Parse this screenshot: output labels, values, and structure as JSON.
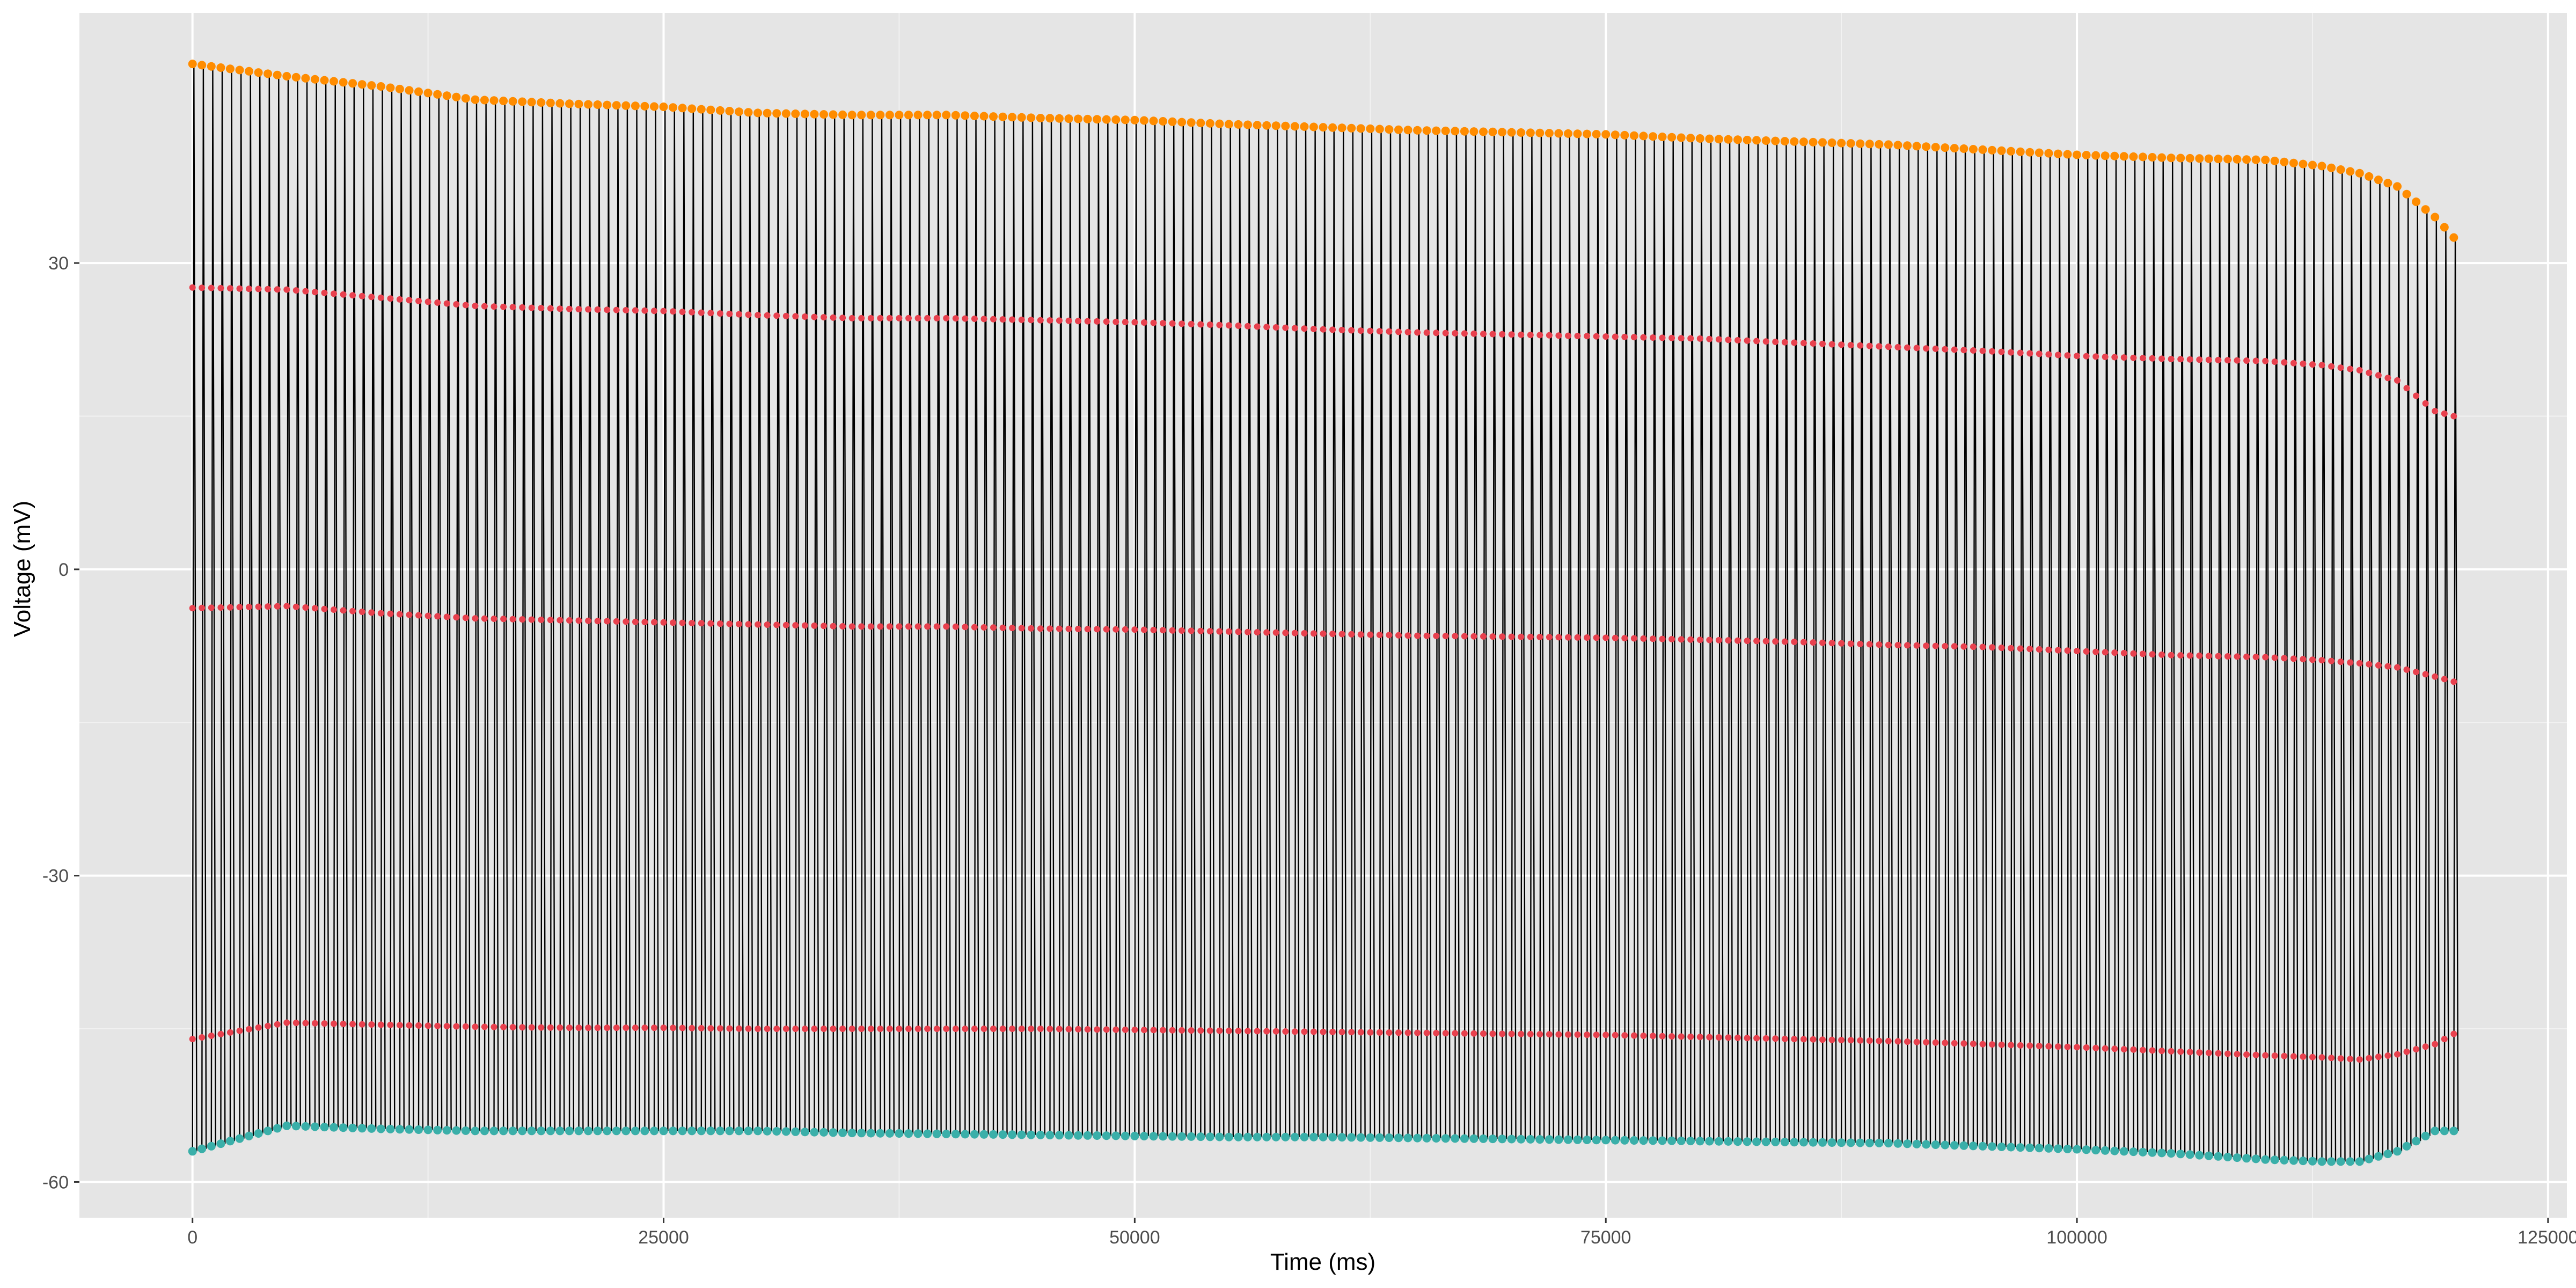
{
  "chart_data": {
    "type": "line",
    "title": "",
    "xlabel": "Time (ms)",
    "ylabel": "Voltage (mV)",
    "xlim": [
      -6000,
      126000
    ],
    "ylim": [
      -63.5,
      54.5
    ],
    "x_ticks": [
      0,
      25000,
      50000,
      75000,
      100000,
      125000
    ],
    "x_tick_labels": [
      "0",
      "25000",
      "50000",
      "75000",
      "100000",
      "125000"
    ],
    "y_ticks": [
      -60,
      -30,
      0,
      30
    ],
    "y_tick_labels": [
      "-60",
      "-30",
      "0",
      "30"
    ],
    "grid": true,
    "legend": "none",
    "trace": {
      "description": "dense spike train; each spike rises from trough to peak",
      "t_start": 0,
      "t_end": 120000,
      "spike_interval": 500,
      "color": "#000000"
    },
    "series": [
      {
        "role": "spike peaks",
        "color": "#FF8C00",
        "x": [
          0,
          5000,
          10000,
          15000,
          20000,
          25000,
          30000,
          35000,
          40000,
          45000,
          50000,
          55000,
          60000,
          65000,
          70000,
          75000,
          80000,
          85000,
          90000,
          95000,
          100000,
          105000,
          110000,
          113000,
          115000,
          117000,
          119000,
          120000
        ],
        "y": [
          49.5,
          48.3,
          47.3,
          46.0,
          45.6,
          45.3,
          44.7,
          44.5,
          44.5,
          44.2,
          44.0,
          43.6,
          43.3,
          43.0,
          42.8,
          42.6,
          42.2,
          41.9,
          41.6,
          41.1,
          40.6,
          40.3,
          40.1,
          39.5,
          38.8,
          37.5,
          34.5,
          32.5
        ]
      },
      {
        "role": "upper marker",
        "color": "#E8414E",
        "x": [
          0,
          5000,
          10000,
          15000,
          20000,
          25000,
          30000,
          35000,
          40000,
          45000,
          50000,
          55000,
          60000,
          65000,
          70000,
          75000,
          80000,
          85000,
          90000,
          95000,
          100000,
          105000,
          110000,
          113000,
          115000,
          117000,
          119000,
          120000
        ],
        "y": [
          27.6,
          27.4,
          26.6,
          25.8,
          25.5,
          25.3,
          24.9,
          24.6,
          24.6,
          24.4,
          24.2,
          23.9,
          23.5,
          23.2,
          23.0,
          22.8,
          22.6,
          22.2,
          21.8,
          21.4,
          20.9,
          20.6,
          20.4,
          20.0,
          19.5,
          18.5,
          15.5,
          15.0
        ]
      },
      {
        "role": "middle marker",
        "color": "#E8414E",
        "x": [
          0,
          5000,
          10000,
          15000,
          20000,
          25000,
          30000,
          35000,
          40000,
          45000,
          50000,
          55000,
          60000,
          65000,
          70000,
          75000,
          80000,
          85000,
          90000,
          95000,
          100000,
          105000,
          110000,
          113000,
          115000,
          117000,
          119000,
          120000
        ],
        "y": [
          -3.8,
          -3.6,
          -4.3,
          -4.8,
          -5.0,
          -5.2,
          -5.4,
          -5.6,
          -5.6,
          -5.8,
          -5.9,
          -6.1,
          -6.3,
          -6.5,
          -6.6,
          -6.7,
          -6.9,
          -7.1,
          -7.4,
          -7.6,
          -8.0,
          -8.4,
          -8.6,
          -8.9,
          -9.2,
          -9.6,
          -10.5,
          -11.0
        ]
      },
      {
        "role": "lower marker",
        "color": "#E8414E",
        "x": [
          0,
          5000,
          10000,
          15000,
          20000,
          25000,
          30000,
          35000,
          40000,
          45000,
          50000,
          55000,
          60000,
          65000,
          70000,
          75000,
          80000,
          85000,
          90000,
          95000,
          100000,
          105000,
          110000,
          113000,
          115000,
          117000,
          119000,
          120000
        ],
        "y": [
          -46.0,
          -44.4,
          -44.6,
          -44.8,
          -44.9,
          -44.9,
          -45.0,
          -45.0,
          -45.0,
          -45.0,
          -45.1,
          -45.2,
          -45.3,
          -45.4,
          -45.5,
          -45.6,
          -45.8,
          -46.0,
          -46.2,
          -46.5,
          -46.8,
          -47.2,
          -47.6,
          -47.8,
          -48.0,
          -47.5,
          -46.5,
          -45.5
        ]
      },
      {
        "role": "troughs",
        "color": "#3AAFA9",
        "x": [
          0,
          5000,
          10000,
          15000,
          20000,
          25000,
          30000,
          35000,
          40000,
          45000,
          50000,
          55000,
          60000,
          65000,
          70000,
          75000,
          80000,
          85000,
          90000,
          95000,
          100000,
          105000,
          110000,
          113000,
          115000,
          117000,
          119000,
          120000
        ],
        "y": [
          -57.0,
          -54.5,
          -54.8,
          -55.0,
          -55.0,
          -55.0,
          -55.0,
          -55.2,
          -55.3,
          -55.4,
          -55.5,
          -55.6,
          -55.6,
          -55.7,
          -55.8,
          -55.9,
          -56.0,
          -56.1,
          -56.2,
          -56.5,
          -56.8,
          -57.2,
          -57.8,
          -58.0,
          -58.0,
          -57.0,
          -55.0,
          -55.0
        ]
      }
    ]
  }
}
